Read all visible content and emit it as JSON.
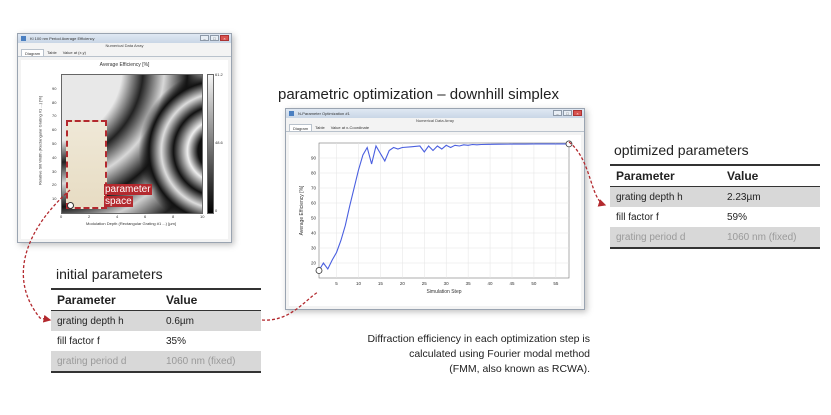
{
  "colors": {
    "accent": "#b3292e",
    "line": "#4a5fe0",
    "shaded_row": "#d8d8d8"
  },
  "heatmap_window": {
    "title": "Kl 100 nm Period Average Efficiency",
    "subtitle": "Numerical Data Array",
    "tabs": [
      "Diagram",
      "Table",
      "Value at (x,y)"
    ],
    "chart_title": "Average Efficiency  [%]",
    "ylabel": "Relative Slit Width (Rectangular Grating #1 ...) [%]",
    "xlabel": "Modulation Depth (Rectangular Grating #1 ...) [µm]",
    "xticks": [
      "0",
      "2",
      "4",
      "6",
      "8",
      "10"
    ],
    "yticks": [
      "10",
      "20",
      "30",
      "40",
      "50",
      "60",
      "70",
      "80",
      "90"
    ],
    "colorbar": {
      "max": "61.2",
      "mid": "48.6",
      "min": "0"
    },
    "param_label_line1": "parameter",
    "param_label_line2": "space",
    "window_controls": [
      "minimize-icon",
      "maximize-icon",
      "close-icon"
    ]
  },
  "section_title": "parametric optimization – downhill simplex",
  "optimization_window": {
    "title": "N-Parameter Optimization #1",
    "subtitle": "Numerical Data Array",
    "tabs": [
      "Diagram",
      "Table",
      "Value at x-Coordinate"
    ],
    "window_controls": [
      "minimize-icon",
      "maximize-icon",
      "close-icon"
    ]
  },
  "chart_data": {
    "type": "line",
    "xlabel": "Simulation Step",
    "ylabel": "Average Efficiency [%]",
    "xlim": [
      1,
      58
    ],
    "ylim": [
      10,
      100
    ],
    "xticks": [
      5,
      10,
      15,
      20,
      25,
      30,
      35,
      40,
      45,
      50,
      55
    ],
    "yticks": [
      20,
      30,
      40,
      50,
      60,
      70,
      80,
      90
    ],
    "grid": true,
    "series": [
      {
        "color": "#4a5fe0",
        "x": [
          1,
          2,
          3,
          4,
          5,
          6,
          7,
          8,
          9,
          10,
          11,
          12,
          13,
          14,
          15,
          16,
          17,
          18,
          19,
          20,
          22,
          24,
          25,
          26,
          27,
          28,
          29,
          30,
          31,
          32,
          33,
          34,
          35,
          36,
          37,
          38,
          40,
          42,
          45,
          48,
          50,
          52,
          55,
          58
        ],
        "y": [
          15,
          20,
          16,
          22,
          27,
          35,
          45,
          58,
          70,
          82,
          92,
          97,
          86,
          98,
          93,
          88,
          95,
          97,
          96,
          97,
          97.5,
          98,
          94,
          98,
          95,
          98,
          96,
          98.5,
          97,
          98.5,
          98,
          98.8,
          98.5,
          99,
          98.8,
          99,
          99.1,
          99.2,
          99.3,
          99.3,
          99.4,
          99.4,
          99.4,
          99.4
        ]
      }
    ]
  },
  "initial_parameters": {
    "heading": "initial parameters",
    "col_param": "Parameter",
    "col_value": "Value",
    "rows": [
      {
        "param": "grating depth h",
        "value": "0.6µm"
      },
      {
        "param": "fill factor f",
        "value": "35%"
      },
      {
        "param": "grating period d",
        "value": "1060 nm (fixed)"
      }
    ]
  },
  "optimized_parameters": {
    "heading": "optimized parameters",
    "col_param": "Parameter",
    "col_value": "Value",
    "rows": [
      {
        "param": "grating depth h",
        "value": "2.23µm"
      },
      {
        "param": "fill factor f",
        "value": "59%"
      },
      {
        "param": "grating period d",
        "value": "1060 nm (fixed)"
      }
    ]
  },
  "caption": {
    "line1": "Diffraction efficiency in each optimization step is",
    "line2": "calculated using Fourier modal method",
    "line3": "(FMM, also known as RCWA)."
  }
}
